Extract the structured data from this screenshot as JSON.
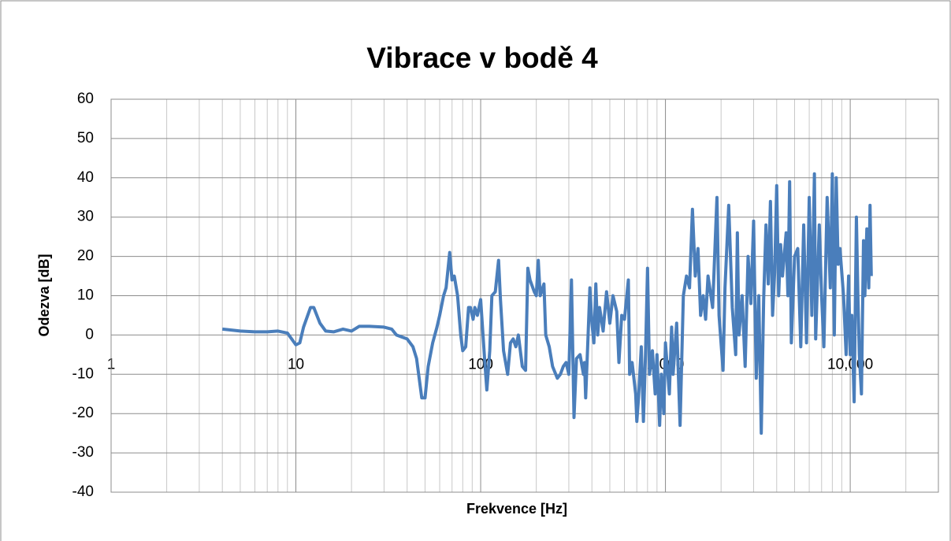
{
  "chart_data": {
    "type": "line",
    "title": "Vibrace v bodě 4",
    "xlabel": "Frekvence [Hz]",
    "ylabel": "Odezva [dB]",
    "log_x": true,
    "grid": true,
    "minor_grid": true,
    "color": "#4a7ebb",
    "xlim": [
      1,
      30000
    ],
    "ylim": [
      -40,
      60
    ],
    "xticks": [
      1,
      10,
      100,
      {
        "value": 1000,
        "label": "1,000"
      },
      {
        "value": 10000,
        "label": "10,000"
      }
    ],
    "yticks": [
      -40,
      -30,
      -20,
      -10,
      0,
      10,
      20,
      30,
      40,
      50,
      60
    ],
    "x": [
      4,
      5,
      6,
      7,
      8,
      9,
      10,
      10.5,
      11,
      12,
      12.5,
      13.5,
      14.5,
      16,
      18,
      20,
      22,
      25,
      30,
      33,
      35,
      40,
      43,
      45,
      48,
      50,
      52,
      55,
      58,
      60,
      63,
      65,
      68,
      70,
      72,
      75,
      78,
      80,
      83,
      86,
      88,
      91,
      93,
      96,
      100,
      105,
      108,
      112,
      115,
      120,
      125,
      128,
      133,
      140,
      145,
      150,
      155,
      160,
      168,
      175,
      180,
      185,
      195,
      200,
      205,
      210,
      220,
      225,
      235,
      245,
      260,
      270,
      280,
      290,
      300,
      310,
      320,
      330,
      345,
      360,
      365,
      370,
      380,
      390,
      400,
      410,
      420,
      430,
      440,
      450,
      460,
      480,
      500,
      520,
      545,
      560,
      580,
      600,
      630,
      640,
      660,
      690,
      700,
      715,
      740,
      760,
      780,
      800,
      820,
      850,
      880,
      900,
      930,
      950,
      980,
      1000,
      1050,
      1080,
      1100,
      1150,
      1200,
      1250,
      1300,
      1350,
      1400,
      1450,
      1500,
      1550,
      1600,
      1650,
      1700,
      1800,
      1900,
      1950,
      2050,
      2100,
      2200,
      2300,
      2400,
      2450,
      2500,
      2600,
      2700,
      2800,
      2900,
      3000,
      3100,
      3200,
      3300,
      3400,
      3500,
      3600,
      3700,
      3800,
      3900,
      4000,
      4100,
      4200,
      4300,
      4500,
      4600,
      4700,
      4800,
      5000,
      5200,
      5400,
      5600,
      5800,
      6000,
      6200,
      6400,
      6500,
      6800,
      7000,
      7200,
      7500,
      7800,
      8000,
      8200,
      8400,
      8600,
      8800,
      9200,
      9500,
      9800,
      10000,
      10200,
      10500,
      10800,
      11000,
      11200,
      11500,
      11800,
      12000,
      12300,
      12600,
      12800,
      13000
    ],
    "values": [
      1.5,
      1,
      0.8,
      0.8,
      1,
      0.5,
      -2.5,
      -2,
      2,
      7,
      7,
      3,
      1,
      0.8,
      1.5,
      1,
      2.2,
      2.2,
      2,
      1.5,
      0,
      -1,
      -3,
      -6,
      -16,
      -16,
      -8,
      -2,
      2,
      5,
      10,
      12,
      21,
      14,
      15,
      10,
      0,
      -4,
      -3,
      7,
      7,
      4,
      7,
      5,
      9,
      -6,
      -14,
      -4,
      10,
      11,
      19,
      9,
      -4,
      -10,
      -2,
      -1,
      -3,
      0,
      -8,
      -9,
      17,
      14,
      11,
      10,
      19,
      10,
      13,
      0,
      -3,
      -8,
      -11,
      -10,
      -8,
      -7,
      -10,
      14,
      -21,
      -6,
      -5,
      -10,
      -7,
      -16,
      -2,
      12,
      3,
      -2,
      13,
      0,
      7,
      4,
      1,
      11,
      3,
      10,
      6,
      -7,
      5,
      4,
      14,
      -10,
      -7,
      -15,
      -22,
      -16,
      -3,
      -22,
      -5,
      17,
      -10,
      -4,
      -15,
      -5,
      -23,
      -10,
      -20,
      -2,
      -15,
      2,
      -10,
      3,
      -23,
      10,
      15,
      12,
      32,
      15,
      22,
      5,
      10,
      4,
      15,
      7,
      35,
      5,
      -9,
      12,
      33,
      7,
      -5,
      26,
      0,
      10,
      -8,
      20,
      8,
      29,
      -11,
      10,
      -25,
      9,
      28,
      13,
      34,
      5,
      16,
      38,
      10,
      23,
      15,
      26,
      10,
      39,
      -2,
      20,
      22,
      -3,
      28,
      -2,
      35,
      5,
      41,
      -1,
      28,
      10,
      -3,
      35,
      12,
      41,
      0,
      40,
      18,
      22,
      10,
      -5,
      15,
      -5,
      5,
      -17,
      30,
      10,
      -5,
      -15,
      24,
      10,
      27,
      12,
      33,
      15
    ]
  }
}
